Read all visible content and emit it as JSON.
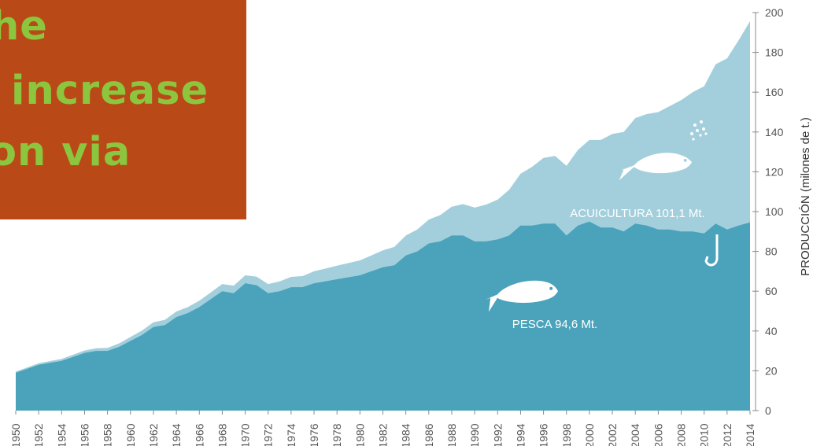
{
  "overlay": {
    "lines": [
      "he",
      " increase",
      "on via"
    ],
    "background": "#b94a17",
    "text_color": "#8cc63e"
  },
  "chart_data": {
    "type": "area",
    "ylabel": "PRODUCCIÓN (milones de t.)",
    "ylim": [
      0,
      200
    ],
    "yticks": [
      0,
      20,
      40,
      60,
      80,
      100,
      120,
      140,
      160,
      180,
      200
    ],
    "xticks": [
      "1950",
      "1952",
      "1954",
      "1956",
      "1958",
      "1960",
      "1962",
      "1964",
      "1966",
      "1968",
      "1970",
      "1972",
      "1974",
      "1976",
      "1978",
      "1980",
      "1982",
      "1984",
      "1986",
      "1988",
      "1990",
      "1992",
      "1994",
      "1996",
      "1998",
      "2000",
      "2002",
      "2004",
      "2006",
      "2008",
      "2010",
      "2012",
      "2014"
    ],
    "stacked": true,
    "series": [
      {
        "name": "PESCA 94,6 Mt.",
        "color": "#4aa3bb",
        "points": [
          [
            1950,
            19
          ],
          [
            1951,
            21
          ],
          [
            1952,
            23
          ],
          [
            1953,
            24
          ],
          [
            1954,
            25
          ],
          [
            1955,
            27
          ],
          [
            1956,
            29
          ],
          [
            1957,
            30
          ],
          [
            1958,
            30
          ],
          [
            1959,
            32
          ],
          [
            1960,
            35
          ],
          [
            1961,
            38
          ],
          [
            1962,
            42
          ],
          [
            1963,
            43
          ],
          [
            1964,
            47
          ],
          [
            1965,
            49
          ],
          [
            1966,
            52
          ],
          [
            1967,
            56
          ],
          [
            1968,
            60
          ],
          [
            1969,
            59
          ],
          [
            1970,
            64
          ],
          [
            1971,
            63
          ],
          [
            1972,
            59
          ],
          [
            1973,
            60
          ],
          [
            1974,
            62
          ],
          [
            1975,
            62
          ],
          [
            1976,
            64
          ],
          [
            1977,
            65
          ],
          [
            1978,
            66
          ],
          [
            1979,
            67
          ],
          [
            1980,
            68
          ],
          [
            1981,
            70
          ],
          [
            1982,
            72
          ],
          [
            1983,
            73
          ],
          [
            1984,
            78
          ],
          [
            1985,
            80
          ],
          [
            1986,
            84
          ],
          [
            1987,
            85
          ],
          [
            1988,
            88
          ],
          [
            1989,
            88
          ],
          [
            1990,
            85
          ],
          [
            1991,
            85
          ],
          [
            1992,
            86
          ],
          [
            1993,
            88
          ],
          [
            1994,
            93
          ],
          [
            1995,
            93
          ],
          [
            1996,
            94
          ],
          [
            1997,
            94
          ],
          [
            1998,
            88
          ],
          [
            1999,
            93
          ],
          [
            2000,
            95
          ],
          [
            2001,
            92
          ],
          [
            2002,
            92
          ],
          [
            2003,
            90
          ],
          [
            2004,
            94
          ],
          [
            2005,
            93
          ],
          [
            2006,
            91
          ],
          [
            2007,
            91
          ],
          [
            2008,
            90
          ],
          [
            2009,
            90
          ],
          [
            2010,
            89
          ],
          [
            2011,
            94
          ],
          [
            2012,
            91
          ],
          [
            2013,
            93
          ],
          [
            2014,
            94.6
          ]
        ]
      },
      {
        "name": "ACUICULTURA 101,1 Mt.",
        "color": "#a3cfdc",
        "points": [
          [
            1950,
            0.6
          ],
          [
            1952,
            0.8
          ],
          [
            1954,
            1
          ],
          [
            1956,
            1.2
          ],
          [
            1958,
            1.5
          ],
          [
            1960,
            2
          ],
          [
            1962,
            2.4
          ],
          [
            1964,
            2.8
          ],
          [
            1966,
            3.2
          ],
          [
            1968,
            3.6
          ],
          [
            1970,
            4
          ],
          [
            1972,
            4.6
          ],
          [
            1974,
            5.2
          ],
          [
            1976,
            6
          ],
          [
            1978,
            6.8
          ],
          [
            1980,
            7.5
          ],
          [
            1982,
            8.5
          ],
          [
            1984,
            10
          ],
          [
            1986,
            12
          ],
          [
            1988,
            14.5
          ],
          [
            1990,
            17
          ],
          [
            1992,
            20
          ],
          [
            1994,
            26
          ],
          [
            1996,
            33
          ],
          [
            1997,
            34
          ],
          [
            1998,
            35
          ],
          [
            1999,
            38
          ],
          [
            2000,
            41
          ],
          [
            2001,
            44
          ],
          [
            2002,
            47
          ],
          [
            2003,
            50
          ],
          [
            2004,
            53
          ],
          [
            2005,
            56
          ],
          [
            2006,
            59
          ],
          [
            2007,
            62
          ],
          [
            2008,
            66
          ],
          [
            2009,
            70
          ],
          [
            2010,
            74
          ],
          [
            2011,
            80
          ],
          [
            2012,
            86
          ],
          [
            2013,
            93
          ],
          [
            2014,
            101.1
          ]
        ]
      }
    ]
  }
}
